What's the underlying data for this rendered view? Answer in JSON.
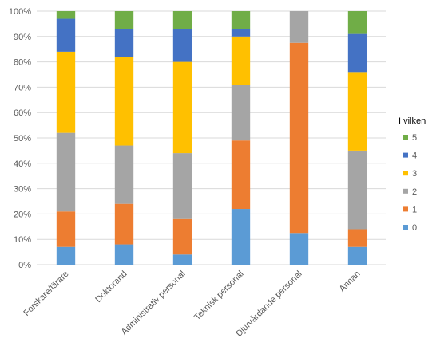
{
  "chart_data": {
    "type": "bar",
    "stacked": "percent",
    "categories": [
      "Forskare/lärare",
      "Doktorand",
      "Administrativ personal",
      "Teknisk personal",
      "Djurvårdande personal",
      "Annan"
    ],
    "series": [
      {
        "name": "0",
        "color": "#5B9BD5",
        "values": [
          7,
          8,
          4,
          22,
          12.5,
          7
        ]
      },
      {
        "name": "1",
        "color": "#ED7D31",
        "values": [
          14,
          16,
          14,
          27,
          75,
          7
        ]
      },
      {
        "name": "2",
        "color": "#A5A5A5",
        "values": [
          31,
          23,
          26,
          22,
          12.5,
          31
        ]
      },
      {
        "name": "3",
        "color": "#FFC000",
        "values": [
          32,
          35,
          36,
          19,
          0,
          31
        ]
      },
      {
        "name": "4",
        "color": "#4472C4",
        "values": [
          13,
          11,
          13,
          3,
          0,
          15
        ]
      },
      {
        "name": "5",
        "color": "#70AD47",
        "values": [
          3,
          7,
          7,
          7,
          0,
          9
        ]
      }
    ],
    "y_ticks": [
      "0%",
      "10%",
      "20%",
      "30%",
      "40%",
      "50%",
      "60%",
      "70%",
      "80%",
      "90%",
      "100%"
    ],
    "ylim": [
      0,
      100
    ],
    "grid": true,
    "legend": {
      "title": "I vilken",
      "position": "right"
    },
    "title": "",
    "xlabel": "",
    "ylabel": ""
  }
}
